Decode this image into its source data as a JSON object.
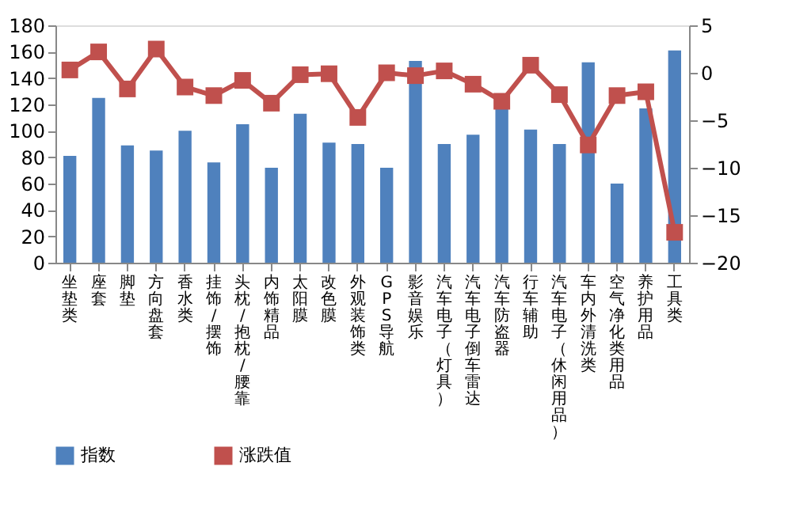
{
  "chart_data": {
    "type": "bar",
    "categories": [
      "坐垫类",
      "座套",
      "脚垫",
      "方向盘套",
      "香水类",
      "挂饰/摆饰",
      "头枕/抱枕/腰靠",
      "内饰精品",
      "太阳膜",
      "改色膜",
      "外观装饰类",
      "GPS导航",
      "影音娱乐",
      "汽车电子（灯具）",
      "汽车电子倒车雷达",
      "汽车防盗器",
      "行车辅助",
      "汽车电子（休闲用品）",
      "车内外清洗类",
      "空气净化类用品",
      "养护用品",
      "工具类"
    ],
    "series": [
      {
        "name": "指数",
        "color": "#4f81bd",
        "values": [
          81,
          125,
          89,
          85,
          100,
          76,
          105,
          72,
          113,
          91,
          90,
          72,
          153,
          90,
          97,
          119,
          101,
          90,
          152,
          60,
          117,
          161
        ]
      },
      {
        "name": "涨跌值",
        "type": "line",
        "axis": "y2",
        "color": "#c0504d",
        "marker": "square",
        "values": [
          0.3,
          2.2,
          -1.7,
          2.5,
          -1.5,
          -2.4,
          -0.8,
          -3.2,
          -0.2,
          -0.1,
          -4.7,
          0,
          -0.3,
          0.2,
          -1.2,
          -3.0,
          0.8,
          -2.3,
          -7.6,
          -2.4,
          -2.0,
          -16.8
        ]
      }
    ],
    "ylim": [
      0,
      180
    ],
    "yticks": [
      0,
      20,
      40,
      60,
      80,
      100,
      120,
      140,
      160,
      180
    ],
    "y2lim": [
      -20,
      5
    ],
    "y2ticks": [
      -20,
      -15,
      -10,
      -5,
      0,
      5
    ],
    "legend": "bottom",
    "grid": false
  }
}
